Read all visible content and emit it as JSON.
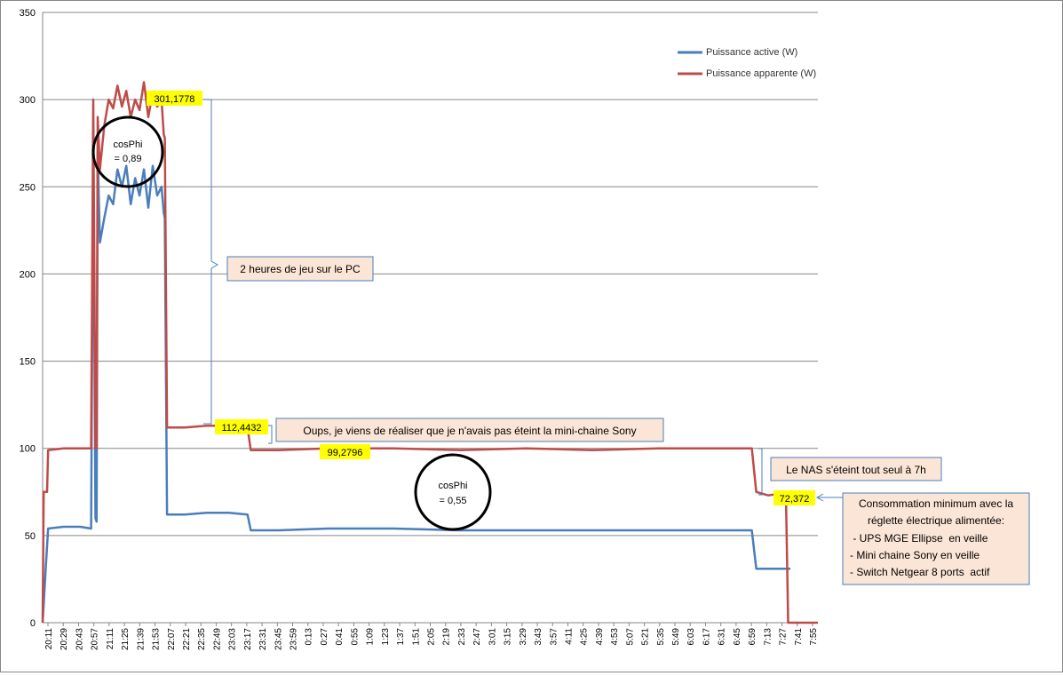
{
  "chart_data": {
    "type": "line",
    "title": "",
    "xlabel": "",
    "ylabel": "",
    "ylim": [
      0,
      350
    ],
    "yticks": [
      0,
      50,
      100,
      150,
      200,
      250,
      300,
      350
    ],
    "grid": "horizontal",
    "legend_position": "top-right",
    "x_tick_labels": [
      "20:11",
      "20:29",
      "20:43",
      "20:57",
      "21:11",
      "21:25",
      "21:39",
      "21:53",
      "22:07",
      "22:21",
      "22:35",
      "22:49",
      "23:03",
      "23:17",
      "23:31",
      "23:45",
      "23:59",
      "0:13",
      "0:27",
      "0:41",
      "0:55",
      "1:09",
      "1:23",
      "1:37",
      "1:51",
      "2:05",
      "2:19",
      "2:33",
      "2:47",
      "3:01",
      "3:15",
      "3:29",
      "3:43",
      "3:57",
      "4:11",
      "4:25",
      "4:39",
      "4:53",
      "5:07",
      "5:21",
      "5:35",
      "5:49",
      "6:03",
      "6:17",
      "6:31",
      "6:45",
      "6:59",
      "7:13",
      "7:27",
      "7:41",
      "7:55"
    ],
    "x_start": "20:11",
    "x_end": "7:55",
    "series": [
      {
        "name": "Puissance active (W)",
        "color": "#4a7ebb",
        "points": [
          [
            "20:11",
            0
          ],
          [
            "20:14",
            33
          ],
          [
            "20:16",
            54
          ],
          [
            "20:30",
            55
          ],
          [
            "20:45",
            55
          ],
          [
            "20:55",
            54
          ],
          [
            "20:57",
            278
          ],
          [
            "20:59",
            60
          ],
          [
            "21:00",
            58
          ],
          [
            "21:01",
            270
          ],
          [
            "21:03",
            218
          ],
          [
            "21:07",
            232
          ],
          [
            "21:11",
            245
          ],
          [
            "21:15",
            240
          ],
          [
            "21:19",
            260
          ],
          [
            "21:23",
            250
          ],
          [
            "21:27",
            262
          ],
          [
            "21:31",
            240
          ],
          [
            "21:35",
            255
          ],
          [
            "21:39",
            245
          ],
          [
            "21:43",
            260
          ],
          [
            "21:47",
            238
          ],
          [
            "21:51",
            262
          ],
          [
            "21:55",
            245
          ],
          [
            "21:59",
            250
          ],
          [
            "22:01",
            235
          ],
          [
            "22:02",
            232
          ],
          [
            "22:04",
            62
          ],
          [
            "22:20",
            62
          ],
          [
            "22:40",
            63
          ],
          [
            "23:00",
            63
          ],
          [
            "23:17",
            62
          ],
          [
            "23:20",
            53
          ],
          [
            "23:45",
            53
          ],
          [
            "0:30",
            54
          ],
          [
            "1:30",
            54
          ],
          [
            "2:30",
            53
          ],
          [
            "3:30",
            53
          ],
          [
            "4:30",
            53
          ],
          [
            "5:30",
            53
          ],
          [
            "6:30",
            53
          ],
          [
            "6:55",
            53
          ],
          [
            "6:59",
            31
          ],
          [
            "7:15",
            31
          ],
          [
            "7:30",
            31
          ]
        ]
      },
      {
        "name": "Puissance apparente (W)",
        "color": "#be4b48",
        "points": [
          [
            "20:11",
            0
          ],
          [
            "20:12",
            75
          ],
          [
            "20:15",
            75
          ],
          [
            "20:16",
            99
          ],
          [
            "20:30",
            100
          ],
          [
            "20:45",
            100
          ],
          [
            "20:55",
            100
          ],
          [
            "20:57",
            300
          ],
          [
            "20:59",
            100
          ],
          [
            "21:00",
            100
          ],
          [
            "21:01",
            290
          ],
          [
            "21:03",
            260
          ],
          [
            "21:07",
            285
          ],
          [
            "21:11",
            300
          ],
          [
            "21:15",
            295
          ],
          [
            "21:19",
            308
          ],
          [
            "21:23",
            296
          ],
          [
            "21:27",
            305
          ],
          [
            "21:31",
            290
          ],
          [
            "21:35",
            300
          ],
          [
            "21:39",
            294
          ],
          [
            "21:43",
            310
          ],
          [
            "21:47",
            290
          ],
          [
            "21:51",
            304
          ],
          [
            "21:55",
            296
          ],
          [
            "21:59",
            300
          ],
          [
            "22:01",
            280
          ],
          [
            "22:02",
            278
          ],
          [
            "22:04",
            112
          ],
          [
            "22:20",
            112
          ],
          [
            "22:40",
            113
          ],
          [
            "23:00",
            113
          ],
          [
            "23:17",
            112
          ],
          [
            "23:20",
            99
          ],
          [
            "23:45",
            99
          ],
          [
            "0:30",
            100
          ],
          [
            "1:30",
            100
          ],
          [
            "2:30",
            99
          ],
          [
            "3:30",
            100
          ],
          [
            "4:30",
            99
          ],
          [
            "5:30",
            100
          ],
          [
            "6:30",
            100
          ],
          [
            "6:55",
            100
          ],
          [
            "6:59",
            75
          ],
          [
            "7:10",
            73
          ],
          [
            "7:20",
            74
          ],
          [
            "7:26",
            74
          ],
          [
            "7:28",
            0
          ],
          [
            "7:55",
            0
          ]
        ]
      }
    ],
    "annotations": {
      "value_labels": [
        "301,1778",
        "112,4432",
        "99,2796",
        "72,372"
      ],
      "circle_1": [
        "cosPhi",
        "= 0,89"
      ],
      "circle_2": [
        "cosPhi",
        "= 0,55"
      ],
      "box_game": "2 heures de jeu sur le PC",
      "box_oups": "Oups, je viens de réaliser que je n'avais pas éteint la mini-chaine Sony",
      "box_nas": "Le NAS s'éteint tout seul à 7h",
      "box_minimum": [
        "Consommation minimum avec la",
        "réglette électrique alimentée:",
        " - UPS MGE Ellipse  en veille",
        "- Mini chaine Sony en veille",
        "- Switch Netgear 8 ports  actif"
      ]
    }
  }
}
